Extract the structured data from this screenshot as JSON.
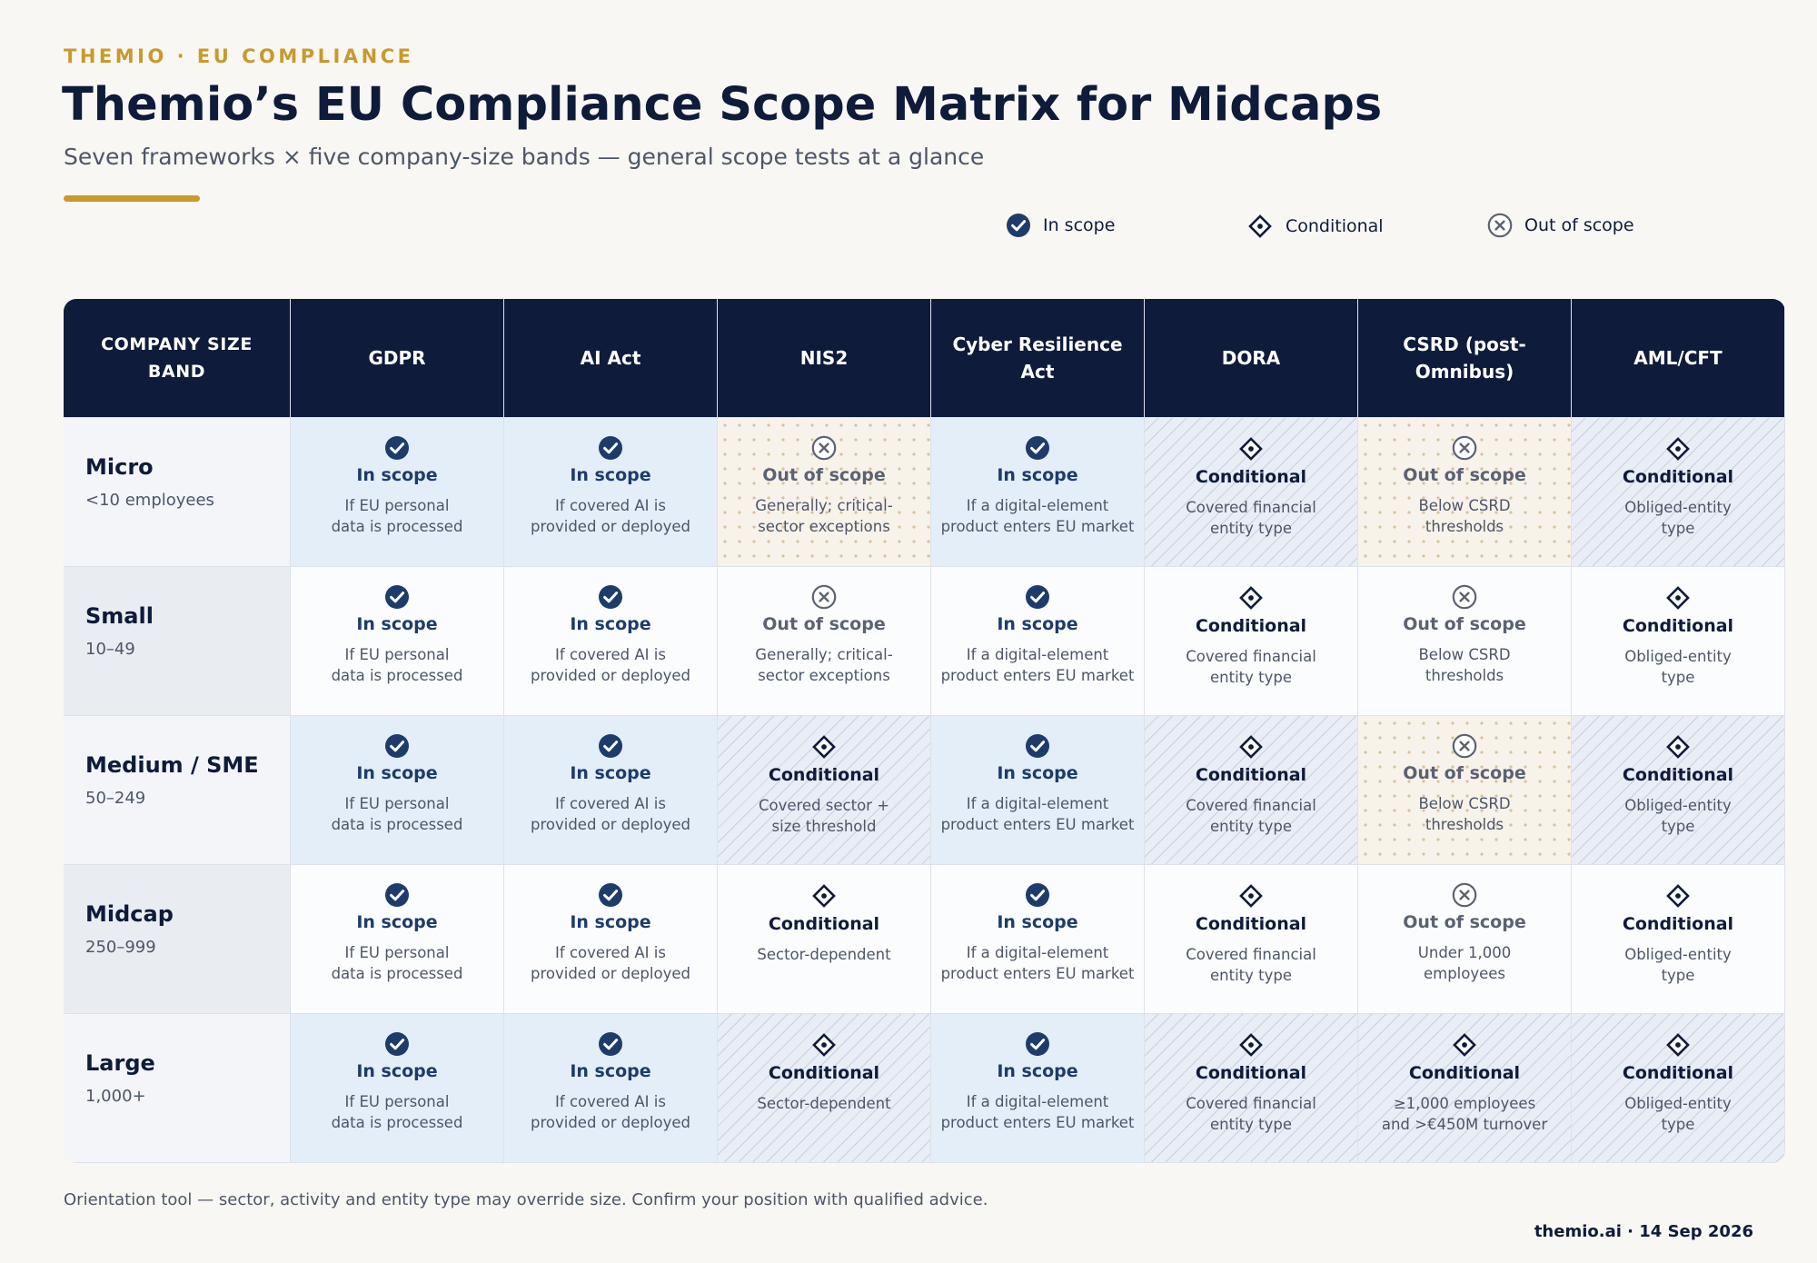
{
  "eyebrow": "THEMIO · EU COMPLIANCE",
  "title": "Themio’s EU Compliance Scope Matrix for Midcaps",
  "subtitle": "Seven frameworks × five company-size bands — general scope tests at a glance",
  "legend": [
    {
      "status": "in",
      "label": "In scope",
      "icon": "check-circle-icon"
    },
    {
      "status": "cond",
      "label": "Conditional",
      "icon": "diamond-icon"
    },
    {
      "status": "out",
      "label": "Out of scope",
      "icon": "x-circle-icon"
    }
  ],
  "colors": {
    "navy": "#0e1b3a",
    "accent_gold": "#c9992b",
    "in_scope": "#1d3c6b",
    "out_of_scope": "#5b6272"
  },
  "matrix": {
    "corner_header": "COMPANY SIZE BAND",
    "columns": [
      "GDPR",
      "AI Act",
      "NIS2",
      "Cyber Resilience Act",
      "DORA",
      "CSRD (post-Omnibus)",
      "AML/CFT"
    ],
    "rows": [
      {
        "band": "Micro",
        "range": "<10 employees",
        "cells": [
          {
            "status": "in",
            "label": "In scope",
            "note": "If EU personal\ndata is processed"
          },
          {
            "status": "in",
            "label": "In scope",
            "note": "If covered AI is\nprovided or deployed"
          },
          {
            "status": "out",
            "label": "Out of scope",
            "note": "Generally; critical-\nsector exceptions"
          },
          {
            "status": "in",
            "label": "In scope",
            "note": "If a digital-element\nproduct enters EU market"
          },
          {
            "status": "cond",
            "label": "Conditional",
            "note": "Covered financial\nentity type"
          },
          {
            "status": "out",
            "label": "Out of scope",
            "note": "Below CSRD\nthresholds"
          },
          {
            "status": "cond",
            "label": "Conditional",
            "note": "Obliged-entity\ntype"
          }
        ]
      },
      {
        "band": "Small",
        "range": "10–49",
        "cells": [
          {
            "status": "in",
            "label": "In scope",
            "note": "If EU personal\ndata is processed"
          },
          {
            "status": "in",
            "label": "In scope",
            "note": "If covered AI is\nprovided or deployed"
          },
          {
            "status": "out",
            "label": "Out of scope",
            "note": "Generally; critical-\nsector exceptions"
          },
          {
            "status": "in",
            "label": "In scope",
            "note": "If a digital-element\nproduct enters EU market"
          },
          {
            "status": "cond",
            "label": "Conditional",
            "note": "Covered financial\nentity type"
          },
          {
            "status": "out",
            "label": "Out of scope",
            "note": "Below CSRD\nthresholds"
          },
          {
            "status": "cond",
            "label": "Conditional",
            "note": "Obliged-entity\ntype"
          }
        ]
      },
      {
        "band": "Medium / SME",
        "range": "50–249",
        "cells": [
          {
            "status": "in",
            "label": "In scope",
            "note": "If EU personal\ndata is processed"
          },
          {
            "status": "in",
            "label": "In scope",
            "note": "If covered AI is\nprovided or deployed"
          },
          {
            "status": "cond",
            "label": "Conditional",
            "note": "Covered sector +\nsize threshold"
          },
          {
            "status": "in",
            "label": "In scope",
            "note": "If a digital-element\nproduct enters EU market"
          },
          {
            "status": "cond",
            "label": "Conditional",
            "note": "Covered financial\nentity type"
          },
          {
            "status": "out",
            "label": "Out of scope",
            "note": "Below CSRD\nthresholds"
          },
          {
            "status": "cond",
            "label": "Conditional",
            "note": "Obliged-entity\ntype"
          }
        ]
      },
      {
        "band": "Midcap",
        "range": "250–999",
        "cells": [
          {
            "status": "in",
            "label": "In scope",
            "note": "If EU personal\ndata is processed"
          },
          {
            "status": "in",
            "label": "In scope",
            "note": "If covered AI is\nprovided or deployed"
          },
          {
            "status": "cond",
            "label": "Conditional",
            "note": "Sector-dependent"
          },
          {
            "status": "in",
            "label": "In scope",
            "note": "If a digital-element\nproduct enters EU market"
          },
          {
            "status": "cond",
            "label": "Conditional",
            "note": "Covered financial\nentity type"
          },
          {
            "status": "out",
            "label": "Out of scope",
            "note": "Under 1,000\nemployees"
          },
          {
            "status": "cond",
            "label": "Conditional",
            "note": "Obliged-entity\ntype"
          }
        ]
      },
      {
        "band": "Large",
        "range": "1,000+",
        "cells": [
          {
            "status": "in",
            "label": "In scope",
            "note": "If EU personal\ndata is processed"
          },
          {
            "status": "in",
            "label": "In scope",
            "note": "If covered AI is\nprovided or deployed"
          },
          {
            "status": "cond",
            "label": "Conditional",
            "note": "Sector-dependent"
          },
          {
            "status": "in",
            "label": "In scope",
            "note": "If a digital-element\nproduct enters EU market"
          },
          {
            "status": "cond",
            "label": "Conditional",
            "note": "Covered financial\nentity type"
          },
          {
            "status": "cond",
            "label": "Conditional",
            "note": "≥1,000 employees\nand >€450M turnover"
          },
          {
            "status": "cond",
            "label": "Conditional",
            "note": "Obliged-entity\ntype"
          }
        ]
      }
    ]
  },
  "footnote": "Orientation tool — sector, activity and entity type may override size. Confirm your position with qualified advice.",
  "signature": "themio.ai · 14 Sep 2026"
}
